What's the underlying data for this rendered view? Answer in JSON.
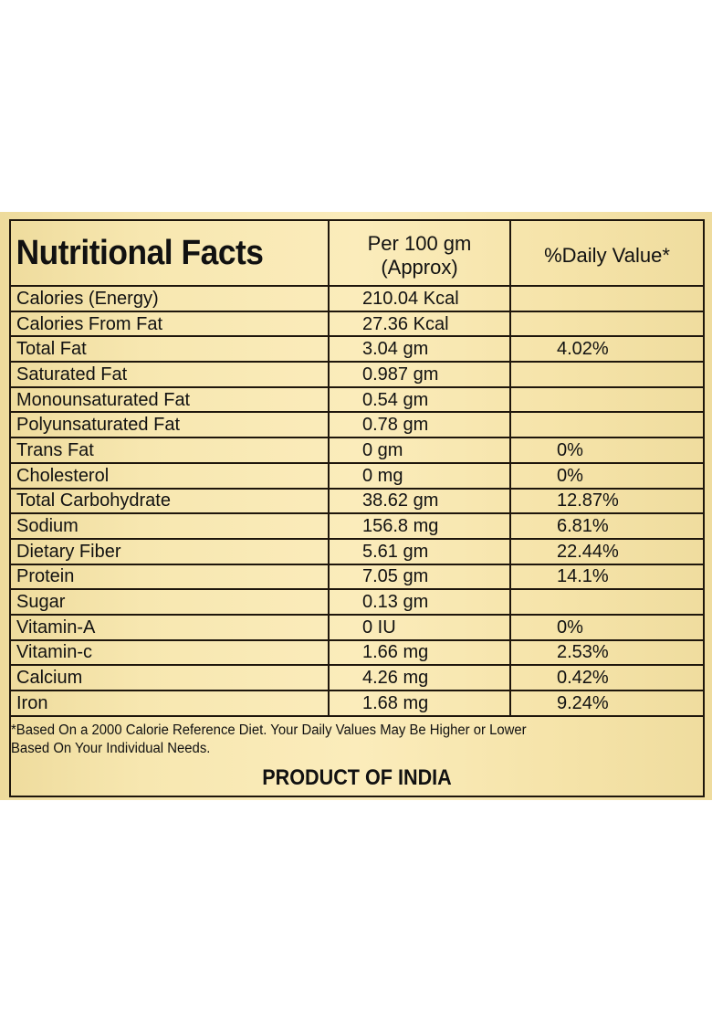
{
  "label": {
    "title": "Nutritional Facts",
    "columns": {
      "amount_line1": "Per 100 gm",
      "amount_line2": "(Approx)",
      "daily_value": "%Daily Value*"
    },
    "rows": [
      {
        "nutrient": "Calories (Energy)",
        "amount": "210.04 Kcal",
        "daily_value": ""
      },
      {
        "nutrient": "Calories From Fat",
        "amount": "27.36 Kcal",
        "daily_value": ""
      },
      {
        "nutrient": "Total Fat",
        "amount": "3.04 gm",
        "daily_value": "4.02%"
      },
      {
        "nutrient": "Saturated Fat",
        "amount": "0.987 gm",
        "daily_value": ""
      },
      {
        "nutrient": "Monounsaturated Fat",
        "amount": "0.54 gm",
        "daily_value": ""
      },
      {
        "nutrient": "Polyunsaturated Fat",
        "amount": "0.78 gm",
        "daily_value": ""
      },
      {
        "nutrient": "Trans Fat",
        "amount": "0 gm",
        "daily_value": "0%"
      },
      {
        "nutrient": "Cholesterol",
        "amount": "0 mg",
        "daily_value": "0%"
      },
      {
        "nutrient": "Total Carbohydrate",
        "amount": "38.62 gm",
        "daily_value": "12.87%"
      },
      {
        "nutrient": "Sodium",
        "amount": "156.8 mg",
        "daily_value": "6.81%"
      },
      {
        "nutrient": "Dietary Fiber",
        "amount": "5.61 gm",
        "daily_value": "22.44%"
      },
      {
        "nutrient": "Protein",
        "amount": "7.05 gm",
        "daily_value": "14.1%"
      },
      {
        "nutrient": "Sugar",
        "amount": "0.13 gm",
        "daily_value": ""
      },
      {
        "nutrient": "Vitamin-A",
        "amount": "0 IU",
        "daily_value": "0%"
      },
      {
        "nutrient": "Vitamin-c",
        "amount": "1.66 mg",
        "daily_value": "2.53%"
      },
      {
        "nutrient": "Calcium",
        "amount": "4.26 mg",
        "daily_value": "0.42%"
      },
      {
        "nutrient": "Iron",
        "amount": "1.68 mg",
        "daily_value": "9.24%"
      }
    ],
    "footnote_line1": "*Based On a 2000 Calorie Reference Diet. Your Daily Values May Be Higher or Lower",
    "footnote_line2": "Based On Your Individual Needs.",
    "origin": "PRODUCT OF INDIA"
  },
  "colors": {
    "label_background": "#f7e7b0",
    "border": "#1e160c",
    "text": "#111111"
  }
}
